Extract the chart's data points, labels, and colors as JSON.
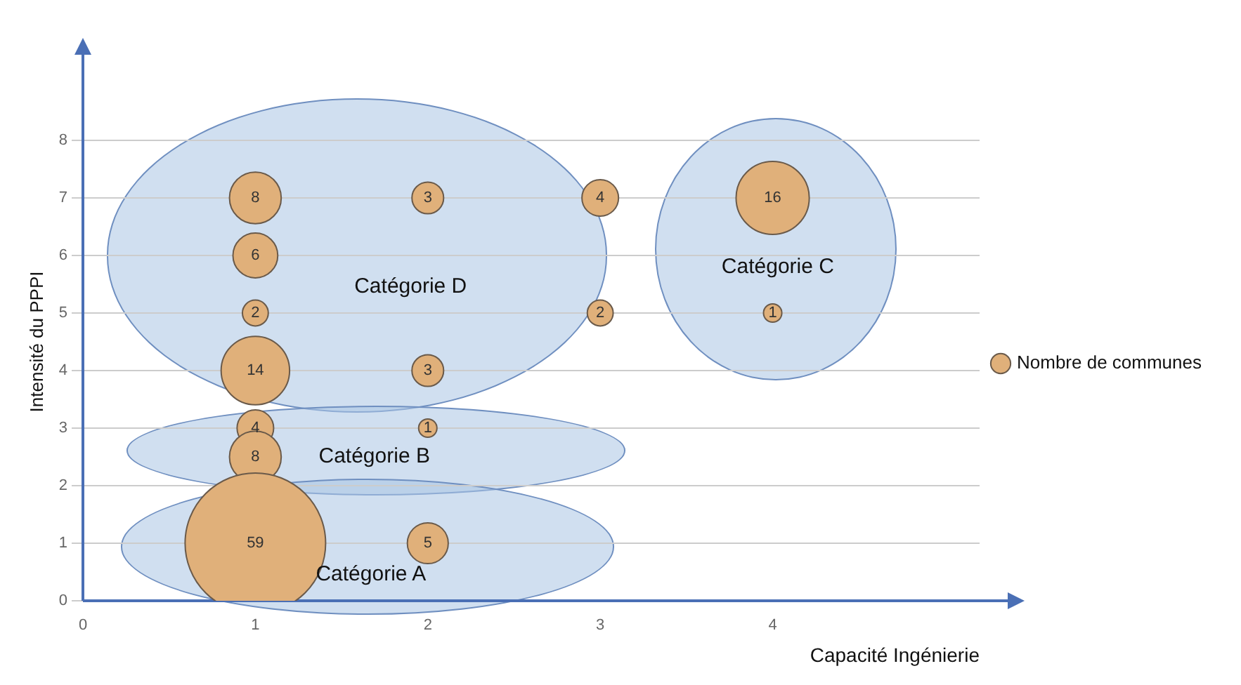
{
  "chart_data": {
    "type": "bubble",
    "xlabel": "Capacité Ingénierie",
    "ylabel": "Intensité du PPPI",
    "xlim": [
      0,
      5.2
    ],
    "xticks": [
      0,
      1,
      2,
      3,
      4
    ],
    "ylim": [
      0,
      9
    ],
    "yticks": [
      0,
      1,
      2,
      3,
      4,
      5,
      6,
      7,
      8
    ],
    "grid": "y",
    "legend": "right",
    "series": [
      {
        "name": "Nombre de communes",
        "color": "#e0b07a",
        "x": [
          1,
          2,
          3,
          4,
          1,
          1,
          3,
          4,
          1,
          2,
          1,
          2,
          1,
          1,
          2
        ],
        "values": [
          7,
          7,
          7,
          7,
          6,
          5,
          5,
          5,
          4,
          4,
          3,
          3,
          2.5,
          1,
          1
        ],
        "sizes": [
          8,
          3,
          4,
          16,
          6,
          2,
          2,
          1,
          14,
          3,
          4,
          1,
          8,
          59,
          5
        ],
        "value_labels": [
          "8",
          "3",
          "4",
          "16",
          "6",
          "2",
          "2",
          "1",
          "14",
          "3",
          "4",
          "1",
          "8",
          "59",
          "5"
        ]
      }
    ],
    "annotations": [
      "Catégorie D",
      "Catégorie C",
      "Catégorie B",
      "Catégorie A"
    ]
  }
}
